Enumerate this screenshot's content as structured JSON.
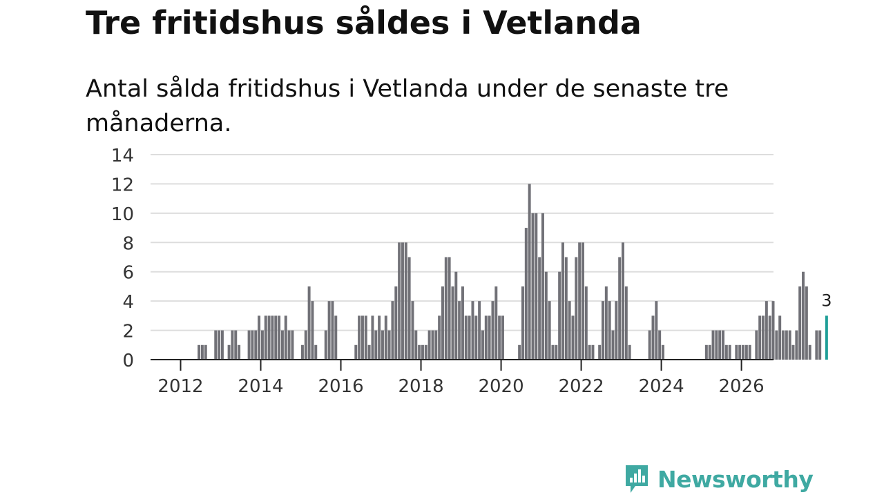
{
  "title": "Tre fritidshus såldes i Vetlanda",
  "subtitle": "Antal sålda fritidshus i Vetlanda under de senaste tre månaderna.",
  "brand": {
    "name": "Newsworthy",
    "color": "#3fa9a2"
  },
  "colors": {
    "bar": "#717177",
    "highlight": "#1e9e97",
    "grid": "#dddddd",
    "axis": "#222222"
  },
  "chart_data": {
    "type": "bar",
    "title": "Tre fritidshus såldes i Vetlanda",
    "xlabel": "",
    "ylabel": "",
    "ylim": [
      0,
      14
    ],
    "yticks": [
      0,
      2,
      4,
      6,
      8,
      10,
      12,
      14
    ],
    "xticks": [
      2012,
      2014,
      2016,
      2018,
      2020,
      2022,
      2024,
      2026
    ],
    "xlim": [
      2011.25,
      2026.8
    ],
    "start": "2012-01",
    "frequency": "monthly",
    "values": [
      0,
      0,
      0,
      0,
      0,
      1,
      1,
      1,
      0,
      0,
      2,
      2,
      2,
      0,
      1,
      2,
      2,
      1,
      0,
      0,
      2,
      2,
      2,
      3,
      2,
      3,
      3,
      3,
      3,
      3,
      2,
      3,
      2,
      2,
      0,
      0,
      1,
      2,
      5,
      4,
      1,
      0,
      0,
      2,
      4,
      4,
      3,
      0,
      0,
      0,
      0,
      0,
      1,
      3,
      3,
      3,
      1,
      3,
      2,
      3,
      2,
      3,
      2,
      4,
      5,
      8,
      8,
      8,
      7,
      4,
      2,
      1,
      1,
      1,
      2,
      2,
      2,
      3,
      5,
      7,
      7,
      5,
      6,
      4,
      5,
      3,
      3,
      4,
      3,
      4,
      2,
      3,
      3,
      4,
      5,
      3,
      3,
      0,
      0,
      0,
      0,
      1,
      5,
      9,
      12,
      10,
      10,
      7,
      10,
      6,
      4,
      1,
      1,
      6,
      8,
      7,
      4,
      3,
      7,
      8,
      8,
      5,
      1,
      1,
      0,
      1,
      4,
      5,
      4,
      2,
      4,
      7,
      8,
      5,
      1,
      0,
      0,
      0,
      0,
      0,
      2,
      3,
      4,
      2,
      1,
      0,
      0,
      0,
      0,
      0,
      0,
      0,
      0,
      0,
      0,
      0,
      0,
      1,
      1,
      2,
      2,
      2,
      2,
      1,
      1,
      0,
      1,
      1,
      1,
      1,
      1,
      0,
      2,
      3,
      3,
      4,
      3,
      4,
      2,
      3,
      2,
      2,
      2,
      1,
      2,
      5,
      6,
      5,
      1,
      0,
      2,
      2,
      0,
      3
    ],
    "highlight": {
      "label": "3",
      "value": 3,
      "last_bar": true
    }
  }
}
